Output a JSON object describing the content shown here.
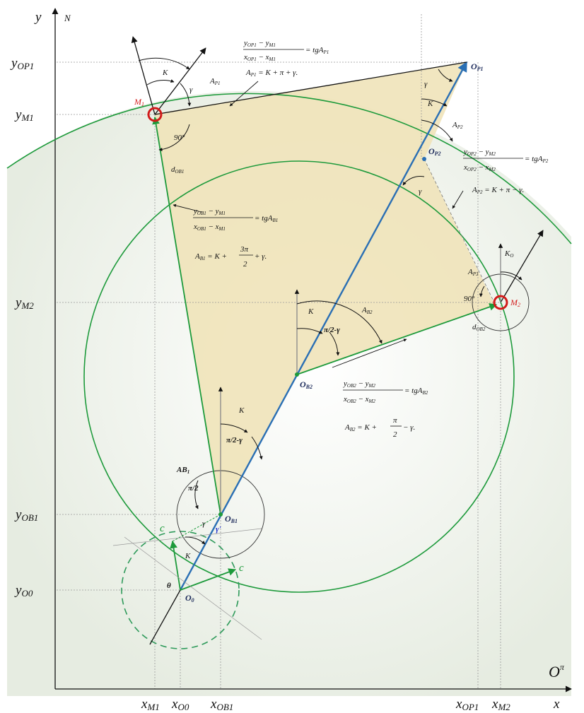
{
  "axes": {
    "y_label": "y",
    "north_label": "N",
    "x_label": "x",
    "origin_label": "O",
    "origin_sup": "π"
  },
  "y_ticks": [
    {
      "label": "y",
      "sub": "OP1"
    },
    {
      "label": "y",
      "sub": "M1"
    },
    {
      "label": "y",
      "sub": "M2"
    },
    {
      "label": "y",
      "sub": "OB1"
    },
    {
      "label": "y",
      "sub": "O0"
    }
  ],
  "x_ticks": [
    {
      "label": "x",
      "sub": "M1"
    },
    {
      "label": "x",
      "sub": "O0"
    },
    {
      "label": "x",
      "sub": "OB1"
    },
    {
      "label": "x",
      "sub": "OP1"
    },
    {
      "label": "x",
      "sub": "M2"
    }
  ],
  "points": {
    "M1": "M",
    "M1_sub": "1",
    "M2": "M",
    "M2_sub": "2",
    "OP1": "O",
    "OP1_sub": "P1",
    "OP2": "O",
    "OP2_sub": "P2",
    "OB1": "O",
    "OB1_sub": "B1",
    "OB2": "O",
    "OB2_sub": "B2",
    "O0": "O",
    "O0_sub": "0"
  },
  "angles": {
    "K": "K",
    "gamma": "γ",
    "AP1": "A",
    "AP1_sub": "P1",
    "AP2": "A",
    "AP2_sub": "P2",
    "AB2": "A",
    "AB2_sub": "B2",
    "AB1": "AB",
    "AB1_sub": "1",
    "AP3": "A",
    "AP3_sub": "P3",
    "K0": "K",
    "K0_sub": "O",
    "deg90": "90°",
    "pi2": "π/2",
    "pi2gamma": "π/2-γ",
    "theta": "θ",
    "gamma0": "γ'"
  },
  "distances": {
    "dOB1": "d",
    "dOB1_sub": "OB1",
    "dOB2": "d",
    "dOB2_sub": "OB2"
  },
  "vectors": {
    "c1": "c⃗",
    "c2": "c⃗"
  },
  "formulas": {
    "f1_num": "y",
    "f1_numsub": "OP1",
    "f1_num2": " − y",
    "f1_num2sub": "M1",
    "f1_den": "x",
    "f1_densub": "OP1",
    "f1_den2": " − x",
    "f1_den2sub": "M1",
    "f1_rhs": " = tgA",
    "f1_rhssub": "P1",
    "f1_eq": "A",
    "f1_eqsub": "P1",
    "f1_eqrhs": " = K + π + γ.",
    "f2_num": "y",
    "f2_numsub": "OP2",
    "f2_num2": " − y",
    "f2_num2sub": "M2",
    "f2_den": "x",
    "f2_densub": "OP2",
    "f2_den2": " − x",
    "f2_den2sub": "M2",
    "f2_rhs": " = tgA",
    "f2_rhssub": "P2",
    "f2_eq": "A",
    "f2_eqsub": "P2",
    "f2_eqrhs": " = K + π − γ.",
    "f3_num": "y",
    "f3_numsub": "OB1",
    "f3_num2": " − y",
    "f3_num2sub": "M1",
    "f3_den": "x",
    "f3_densub": "OB1",
    "f3_den2": " − x",
    "f3_den2sub": "M1",
    "f3_rhs": " = tgA",
    "f3_rhssub": "B1",
    "f3_eq": "A",
    "f3_eqsub": "B1",
    "f3_eqrhs1": " = K + ",
    "f3_frac_num": "3π",
    "f3_frac_den": "2",
    "f3_eqrhs2": " + γ.",
    "f4_num": "y",
    "f4_numsub": "OB2",
    "f4_num2": " − y",
    "f4_num2sub": "M2",
    "f4_den": "x",
    "f4_densub": "OB2",
    "f4_den2": " − x",
    "f4_den2sub": "M2",
    "f4_rhs": " = tgA",
    "f4_rhssub": "B2",
    "f4_eq": "A",
    "f4_eqsub": "B2",
    "f4_eqrhs1": " = K + ",
    "f4_frac_num": "π",
    "f4_frac_den": "2",
    "f4_eqrhs2": " − γ."
  },
  "colors": {
    "green": "#1d9a3b",
    "blue": "#2a6fb4",
    "red": "#d21a1a",
    "fill": "#f1e6bf",
    "bg": "#e9eee4"
  }
}
